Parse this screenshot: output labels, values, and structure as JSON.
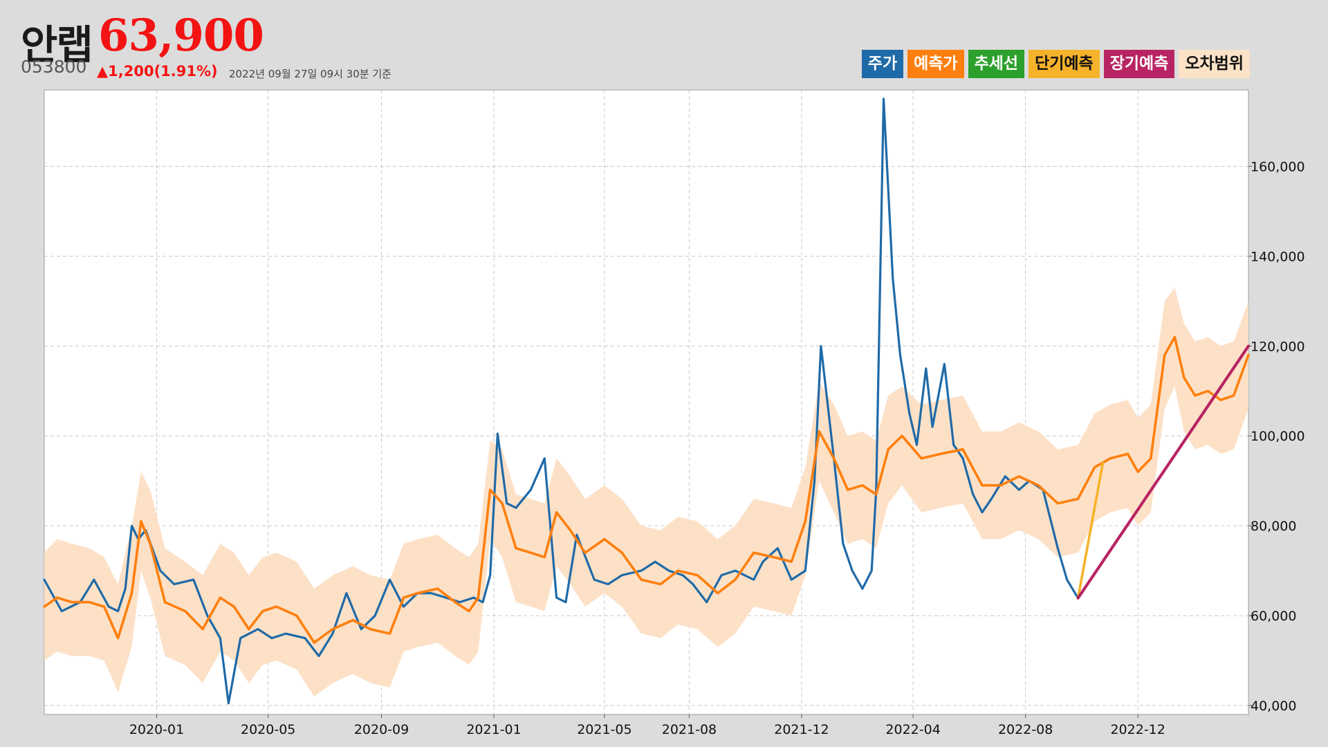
{
  "header": {
    "name": "안랩",
    "price": "63,900",
    "code": "053800",
    "change": "▲1,200(1.91%)",
    "timestamp": "2022년 09월 27일 09시 30분 기준"
  },
  "legend": [
    {
      "label": "주가",
      "color": "#1f6aa8"
    },
    {
      "label": "예측가",
      "color": "#ff7f0e"
    },
    {
      "label": "추세선",
      "color": "#2ca02c"
    },
    {
      "label": "단기예측",
      "color": "#f6b22a"
    },
    {
      "label": "장기예측",
      "color": "#b82463"
    },
    {
      "label": "오차범위",
      "color": "#fce2c7"
    }
  ],
  "colors": {
    "price": "#1f6aa8",
    "predicted": "#ff7f0e",
    "band": "#fddfc4",
    "short": "#f6b22a",
    "long": "#b82463",
    "up": "#f41313"
  },
  "chart_data": {
    "type": "line",
    "x_start": "2019-09-01",
    "x_end": "2023-03-31",
    "ylim": [
      38000,
      177000
    ],
    "grid": true,
    "legend_position": "top-right",
    "x_ticks": [
      {
        "date": "2020-01-01",
        "label": "2020-01"
      },
      {
        "date": "2020-05-01",
        "label": "2020-05"
      },
      {
        "date": "2020-09-01",
        "label": "2020-09"
      },
      {
        "date": "2021-01-01",
        "label": "2021-01"
      },
      {
        "date": "2021-05-01",
        "label": "2021-05"
      },
      {
        "date": "2021-08-01",
        "label": "2021-08"
      },
      {
        "date": "2021-12-01",
        "label": "2021-12"
      },
      {
        "date": "2022-04-01",
        "label": "2022-04"
      },
      {
        "date": "2022-08-01",
        "label": "2022-08"
      },
      {
        "date": "2022-12-01",
        "label": "2022-12"
      }
    ],
    "y_ticks": [
      {
        "value": 40000,
        "label": "40,000"
      },
      {
        "value": 60000,
        "label": "60,000"
      },
      {
        "value": 80000,
        "label": "80,000"
      },
      {
        "value": 100000,
        "label": "100,000"
      },
      {
        "value": 120000,
        "label": "120,000"
      },
      {
        "value": 140000,
        "label": "140,000"
      },
      {
        "value": 160000,
        "label": "160,000"
      }
    ],
    "series": [
      {
        "name": "주가",
        "x": [
          "2019-09-01",
          "2019-09-20",
          "2019-10-10",
          "2019-10-25",
          "2019-11-10",
          "2019-11-20",
          "2019-11-28",
          "2019-12-05",
          "2019-12-12",
          "2019-12-20",
          "2020-01-05",
          "2020-01-20",
          "2020-02-10",
          "2020-02-25",
          "2020-03-10",
          "2020-03-19",
          "2020-04-01",
          "2020-04-20",
          "2020-05-05",
          "2020-05-20",
          "2020-06-10",
          "2020-06-25",
          "2020-07-10",
          "2020-07-25",
          "2020-08-10",
          "2020-08-25",
          "2020-09-10",
          "2020-09-25",
          "2020-10-10",
          "2020-10-25",
          "2020-11-10",
          "2020-11-25",
          "2020-12-10",
          "2020-12-20",
          "2020-12-28",
          "2021-01-05",
          "2021-01-15",
          "2021-01-25",
          "2021-02-10",
          "2021-02-25",
          "2021-03-10",
          "2021-03-20",
          "2021-04-01",
          "2021-04-20",
          "2021-05-05",
          "2021-05-20",
          "2021-06-10",
          "2021-06-25",
          "2021-07-10",
          "2021-07-25",
          "2021-08-05",
          "2021-08-20",
          "2021-09-05",
          "2021-09-20",
          "2021-10-10",
          "2021-10-20",
          "2021-11-05",
          "2021-11-20",
          "2021-12-05",
          "2021-12-15",
          "2021-12-22",
          "2022-01-05",
          "2022-01-15",
          "2022-01-25",
          "2022-02-05",
          "2022-02-15",
          "2022-02-20",
          "2022-02-28",
          "2022-03-10",
          "2022-03-18",
          "2022-03-28",
          "2022-04-05",
          "2022-04-15",
          "2022-04-22",
          "2022-05-05",
          "2022-05-15",
          "2022-05-25",
          "2022-06-05",
          "2022-06-15",
          "2022-06-25",
          "2022-07-10",
          "2022-07-25",
          "2022-08-05",
          "2022-08-20",
          "2022-09-05",
          "2022-09-15",
          "2022-09-27"
        ],
        "values": [
          68000,
          61000,
          63000,
          68000,
          62000,
          61000,
          66000,
          80000,
          77000,
          79000,
          70000,
          67000,
          68000,
          60000,
          55000,
          40500,
          55000,
          57000,
          55000,
          56000,
          55000,
          51000,
          56000,
          65000,
          57000,
          60000,
          68000,
          62000,
          65000,
          65000,
          64000,
          63000,
          64000,
          63000,
          69000,
          100500,
          85000,
          84000,
          88000,
          95000,
          64000,
          63000,
          78000,
          68000,
          67000,
          69000,
          70000,
          72000,
          70000,
          69000,
          67000,
          63000,
          69000,
          70000,
          68000,
          72000,
          75000,
          68000,
          70000,
          90000,
          120000,
          95000,
          76000,
          70000,
          66000,
          70000,
          88000,
          175000,
          135000,
          118000,
          105000,
          98000,
          115000,
          102000,
          116000,
          98000,
          95000,
          87000,
          83000,
          86000,
          91000,
          88000,
          90000,
          88000,
          75000,
          68000,
          63900
        ]
      },
      {
        "name": "예측가",
        "x": [
          "2019-09-01",
          "2019-09-15",
          "2019-10-01",
          "2019-10-20",
          "2019-11-05",
          "2019-11-20",
          "2019-12-05",
          "2019-12-15",
          "2019-12-25",
          "2020-01-10",
          "2020-02-01",
          "2020-02-20",
          "2020-03-10",
          "2020-03-25",
          "2020-04-10",
          "2020-04-25",
          "2020-05-10",
          "2020-06-01",
          "2020-06-20",
          "2020-07-10",
          "2020-08-01",
          "2020-08-20",
          "2020-09-10",
          "2020-09-25",
          "2020-10-10",
          "2020-11-01",
          "2020-11-20",
          "2020-12-05",
          "2020-12-15",
          "2020-12-28",
          "2021-01-10",
          "2021-01-25",
          "2021-02-10",
          "2021-02-25",
          "2021-03-10",
          "2021-03-25",
          "2021-04-10",
          "2021-05-01",
          "2021-05-20",
          "2021-06-10",
          "2021-07-01",
          "2021-07-20",
          "2021-08-10",
          "2021-09-01",
          "2021-09-20",
          "2021-10-10",
          "2021-11-01",
          "2021-11-20",
          "2021-12-05",
          "2021-12-20",
          "2022-01-05",
          "2022-01-20",
          "2022-02-05",
          "2022-02-20",
          "2022-03-05",
          "2022-03-20",
          "2022-04-10",
          "2022-05-01",
          "2022-05-25",
          "2022-06-15",
          "2022-07-05",
          "2022-07-25",
          "2022-08-15",
          "2022-09-05",
          "2022-09-27",
          "2022-10-15",
          "2022-11-01",
          "2022-11-20",
          "2022-12-01",
          "2022-12-15",
          "2022-12-30",
          "2023-01-10",
          "2023-01-20",
          "2023-02-01",
          "2023-02-15",
          "2023-03-01",
          "2023-03-15",
          "2023-03-31"
        ],
        "values": [
          62000,
          64000,
          63000,
          63000,
          62000,
          55000,
          65000,
          81000,
          76000,
          63000,
          61000,
          57000,
          64000,
          62000,
          57000,
          61000,
          62000,
          60000,
          54000,
          57000,
          59000,
          57000,
          56000,
          64000,
          65000,
          66000,
          63000,
          61000,
          64000,
          88000,
          85000,
          75000,
          74000,
          73000,
          83000,
          79000,
          74000,
          77000,
          74000,
          68000,
          67000,
          70000,
          69000,
          65000,
          68000,
          74000,
          73000,
          72000,
          81000,
          101000,
          95000,
          88000,
          89000,
          87000,
          97000,
          100000,
          95000,
          96000,
          97000,
          89000,
          89000,
          91000,
          89000,
          85000,
          86000,
          93000,
          95000,
          96000,
          92000,
          95000,
          118000,
          122000,
          113000,
          109000,
          110000,
          108000,
          109000,
          118000
        ]
      },
      {
        "name": "단기예측",
        "x": [
          "2022-09-27",
          "2022-10-24"
        ],
        "values": [
          63900,
          94000
        ]
      },
      {
        "name": "장기예측",
        "x": [
          "2022-09-27",
          "2023-03-31"
        ],
        "values": [
          63900,
          120000
        ]
      }
    ],
    "band": {
      "name": "오차범위",
      "x": [
        "2019-09-01",
        "2019-09-15",
        "2019-10-01",
        "2019-10-20",
        "2019-11-05",
        "2019-11-20",
        "2019-12-05",
        "2019-12-15",
        "2019-12-25",
        "2020-01-10",
        "2020-02-01",
        "2020-02-20",
        "2020-03-10",
        "2020-03-25",
        "2020-04-10",
        "2020-04-25",
        "2020-05-10",
        "2020-06-01",
        "2020-06-20",
        "2020-07-10",
        "2020-08-01",
        "2020-08-20",
        "2020-09-10",
        "2020-09-25",
        "2020-10-10",
        "2020-11-01",
        "2020-11-20",
        "2020-12-05",
        "2020-12-15",
        "2020-12-28",
        "2021-01-10",
        "2021-01-25",
        "2021-02-10",
        "2021-02-25",
        "2021-03-10",
        "2021-03-25",
        "2021-04-10",
        "2021-05-01",
        "2021-05-20",
        "2021-06-10",
        "2021-07-01",
        "2021-07-20",
        "2021-08-10",
        "2021-09-01",
        "2021-09-20",
        "2021-10-10",
        "2021-11-01",
        "2021-11-20",
        "2021-12-05",
        "2021-12-20",
        "2022-01-05",
        "2022-01-20",
        "2022-02-05",
        "2022-02-20",
        "2022-03-05",
        "2022-03-20",
        "2022-04-10",
        "2022-05-01",
        "2022-05-25",
        "2022-06-15",
        "2022-07-05",
        "2022-07-25",
        "2022-08-15",
        "2022-09-05",
        "2022-09-27",
        "2022-10-15",
        "2022-11-01",
        "2022-11-20",
        "2022-12-01",
        "2022-12-15",
        "2022-12-30",
        "2023-01-10",
        "2023-01-20",
        "2023-02-01",
        "2023-02-15",
        "2023-03-01",
        "2023-03-15",
        "2023-03-31"
      ],
      "upper": [
        74000,
        77000,
        76000,
        75000,
        73000,
        67000,
        80000,
        92000,
        88000,
        75000,
        72000,
        69000,
        76000,
        74000,
        69000,
        73000,
        74000,
        72000,
        66000,
        69000,
        71000,
        69000,
        68000,
        76000,
        77000,
        78000,
        75000,
        73000,
        76000,
        99000,
        97000,
        87000,
        86000,
        85000,
        95000,
        91000,
        86000,
        89000,
        86000,
        80000,
        79000,
        82000,
        81000,
        77000,
        80000,
        86000,
        85000,
        84000,
        93000,
        112000,
        107000,
        100000,
        101000,
        99000,
        109000,
        111000,
        107000,
        108000,
        109000,
        101000,
        101000,
        103000,
        101000,
        97000,
        98000,
        105000,
        107000,
        108000,
        104000,
        107000,
        130000,
        133000,
        125000,
        121000,
        122000,
        120000,
        121000,
        130000
      ],
      "lower": [
        50000,
        52000,
        51000,
        51000,
        50000,
        43000,
        53000,
        70000,
        64000,
        51000,
        49000,
        45000,
        52000,
        50000,
        45000,
        49000,
        50000,
        48000,
        42000,
        45000,
        47000,
        45000,
        44000,
        52000,
        53000,
        54000,
        51000,
        49000,
        52000,
        77000,
        73000,
        63000,
        62000,
        61000,
        71000,
        67000,
        62000,
        65000,
        62000,
        56000,
        55000,
        58000,
        57000,
        53000,
        56000,
        62000,
        61000,
        60000,
        69000,
        90000,
        83000,
        76000,
        77000,
        75000,
        85000,
        89000,
        83000,
        84000,
        85000,
        77000,
        77000,
        79000,
        77000,
        73000,
        74000,
        81000,
        83000,
        84000,
        80000,
        83000,
        106000,
        111000,
        101000,
        97000,
        98000,
        96000,
        97000,
        106000
      ]
    }
  }
}
